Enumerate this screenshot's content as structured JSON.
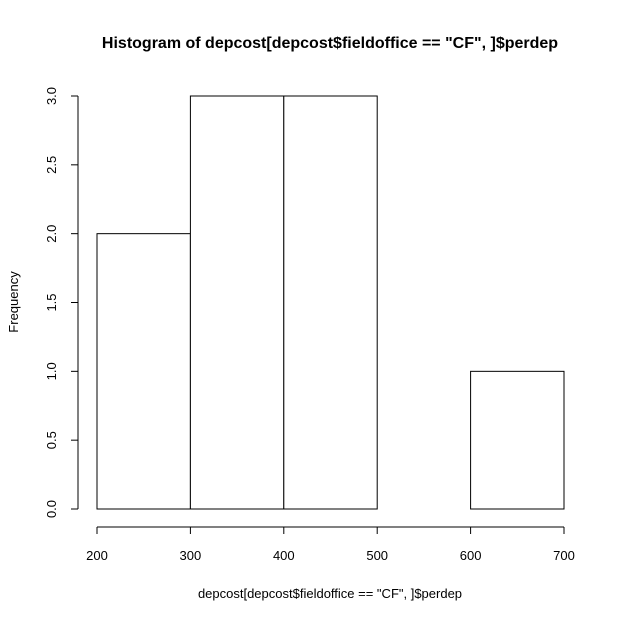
{
  "chart_data": {
    "type": "bar",
    "title": "Histogram of depcost[depcost$fieldoffice == \"CF\", ]$perdep",
    "xlabel": "depcost[depcost$fieldoffice == \"CF\", ]$perdep",
    "ylabel": "Frequency",
    "bins": [
      {
        "x0": 200,
        "x1": 300,
        "count": 2
      },
      {
        "x0": 300,
        "x1": 400,
        "count": 3
      },
      {
        "x0": 400,
        "x1": 500,
        "count": 3
      },
      {
        "x0": 500,
        "x1": 600,
        "count": 0
      },
      {
        "x0": 600,
        "x1": 700,
        "count": 1
      }
    ],
    "xlim": [
      200,
      700
    ],
    "ylim": [
      0,
      3
    ],
    "xticks": [
      "200",
      "300",
      "400",
      "500",
      "600",
      "700"
    ],
    "yticks": [
      "0.0",
      "0.5",
      "1.0",
      "1.5",
      "2.0",
      "2.5",
      "3.0"
    ],
    "grid": false,
    "colors": {
      "bar_fill": "#ffffff",
      "bar_stroke": "#000000"
    }
  }
}
